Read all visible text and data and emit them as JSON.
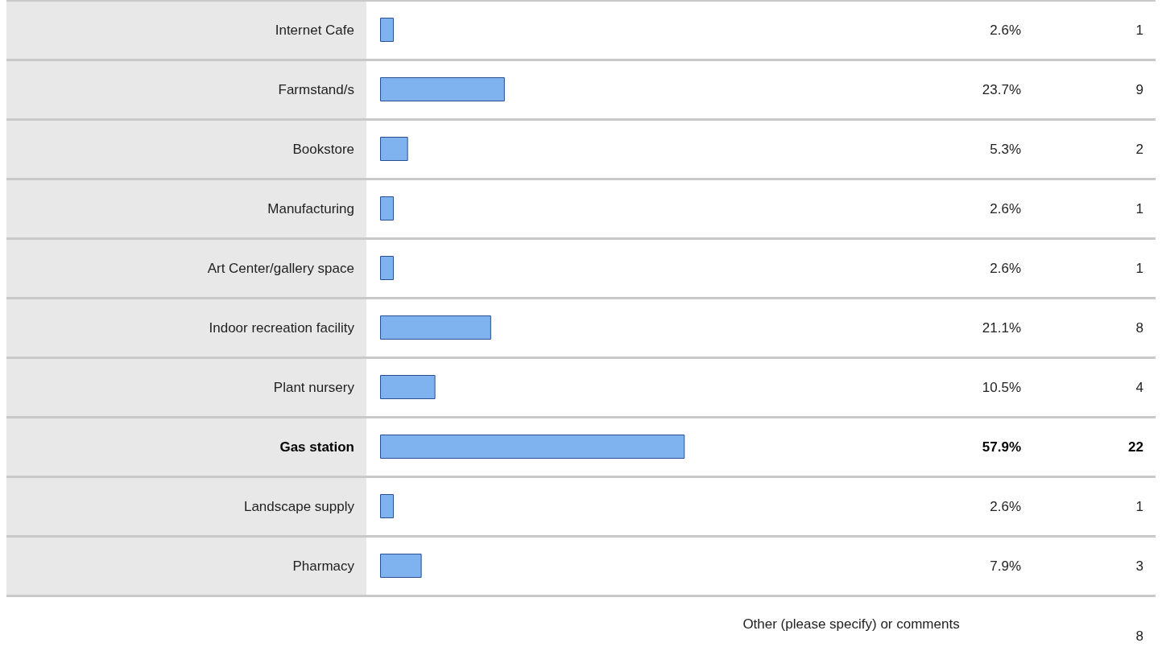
{
  "chart_data": {
    "type": "bar",
    "orientation": "horizontal",
    "categories": [
      "Internet Cafe",
      "Farmstand/s",
      "Bookstore",
      "Manufacturing",
      "Art Center/gallery space",
      "Indoor recreation facility",
      "Plant nursery",
      "Gas station",
      "Landscape supply",
      "Pharmacy"
    ],
    "values": [
      2.6,
      23.7,
      5.3,
      2.6,
      2.6,
      21.1,
      10.5,
      57.9,
      2.6,
      7.9
    ],
    "value_labels": [
      "2.6%",
      "23.7%",
      "5.3%",
      "2.6%",
      "2.6%",
      "21.1%",
      "10.5%",
      "57.9%",
      "2.6%",
      "7.9%"
    ],
    "color": "#7fb3f0",
    "tick_labels": "y",
    "grid": "y",
    "annotations": [
      "1",
      "9",
      "2",
      "1",
      "1",
      "8",
      "4",
      "22",
      "1",
      "3",
      "Other (please specify) or comments",
      "8"
    ]
  }
}
